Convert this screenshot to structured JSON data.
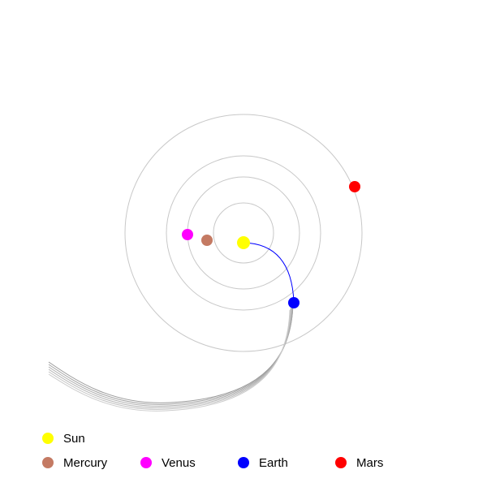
{
  "legend": {
    "sun": {
      "label": "Sun",
      "color": "#ffff00"
    },
    "mercury": {
      "label": "Mercury",
      "color": "#c47a63"
    },
    "venus": {
      "label": "Venus",
      "color": "#ff00ff"
    },
    "earth": {
      "label": "Earth",
      "color": "#0000ff"
    },
    "mars": {
      "label": "Mars",
      "color": "#ff0000"
    }
  },
  "colors": {
    "orbit": "#c8c8c8",
    "earth_path": "#0000ff",
    "trail": "#9a9a9a"
  }
}
